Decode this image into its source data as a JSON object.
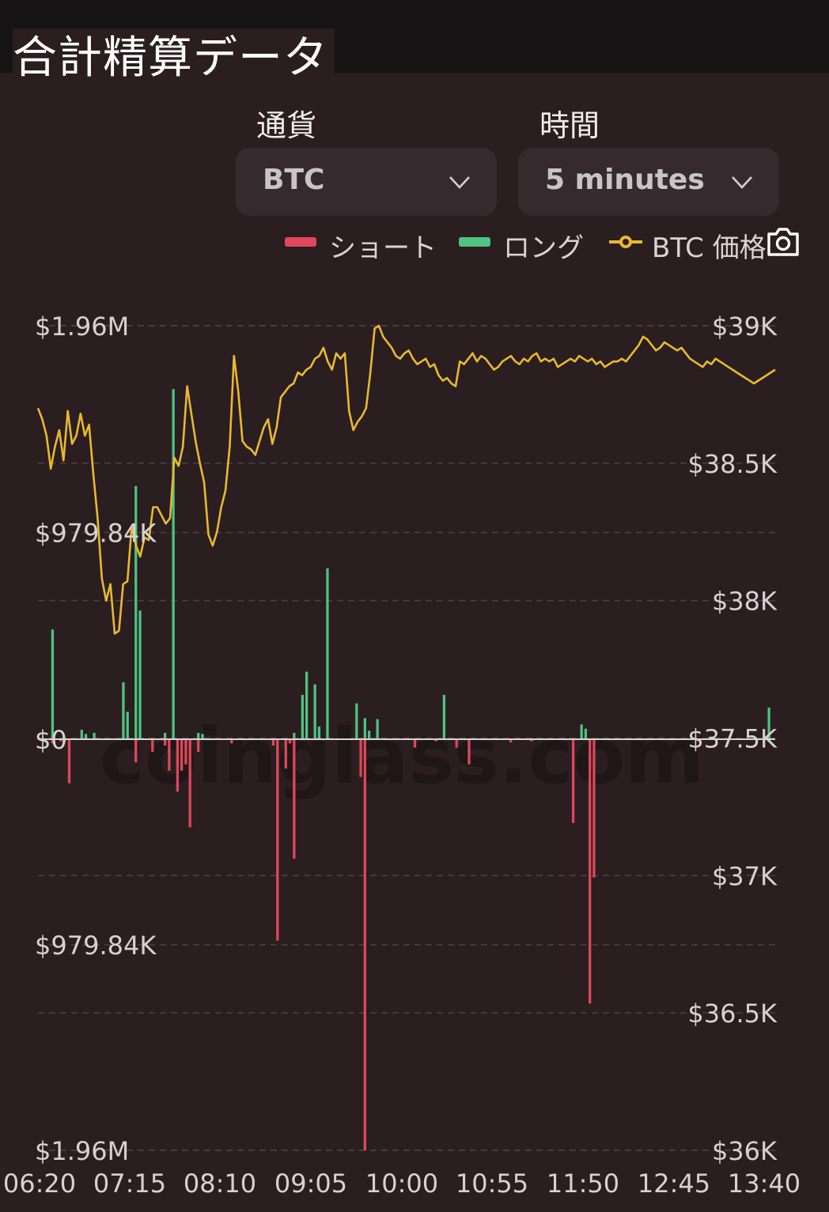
{
  "header": {
    "title": "合計精算データ"
  },
  "filters": {
    "currency_label": "通貨",
    "currency_value": "BTC",
    "interval_label": "時間",
    "interval_value": "5 minutes"
  },
  "legend": {
    "short": "ショート",
    "long": "ロング",
    "price": "BTC 価格"
  },
  "colors": {
    "short": "#e0475a",
    "long": "#4fc37f",
    "price": "#e8b830",
    "background": "#2a1e21"
  },
  "icons": [
    "chevron-down-icon",
    "camera-icon"
  ],
  "watermark": "coinglass.com",
  "chart_data": {
    "type": "bar",
    "x_ticks": [
      "06:20",
      "07:15",
      "08:10",
      "09:05",
      "10:00",
      "10:55",
      "11:50",
      "12:45",
      "13:40"
    ],
    "y_left_ticks": [
      "$1.96M",
      "$979.84K",
      "$0",
      "$979.84K",
      "$1.96M"
    ],
    "y_right_ticks": [
      "$39K",
      "$38.5K",
      "$38K",
      "$37.5K",
      "$37K",
      "$36.5K",
      "$36K"
    ],
    "ylim_left": [
      -1960000,
      1960000
    ],
    "ylim_right": [
      36000,
      39000
    ],
    "series": [
      {
        "name": "ロング",
        "values": [
          0,
          0,
          0,
          520000,
          0,
          0,
          0,
          0,
          0,
          0,
          45000,
          25000,
          0,
          30000,
          0,
          0,
          0,
          0,
          0,
          0,
          270000,
          130000,
          0,
          1200000,
          610000,
          0,
          0,
          0,
          0,
          0,
          30000,
          0,
          1660000,
          0,
          0,
          0,
          0,
          0,
          30000,
          25000,
          0,
          0,
          0,
          0,
          0,
          0,
          0,
          0,
          0,
          0,
          0,
          0,
          0,
          0,
          0,
          0,
          0,
          0,
          0,
          0,
          0,
          30000,
          0,
          210000,
          320000,
          0,
          260000,
          60000,
          0,
          810000,
          0,
          0,
          0,
          0,
          0,
          0,
          170000,
          0,
          100000,
          40000,
          0,
          95000,
          0,
          0,
          0,
          0,
          0,
          0,
          0,
          0,
          0,
          0,
          0,
          0,
          0,
          0,
          0,
          210000,
          0,
          0,
          0,
          0,
          0,
          0,
          0,
          0,
          0,
          0,
          0,
          0,
          0,
          0,
          0,
          0,
          0,
          0,
          0,
          0,
          0,
          0,
          0,
          0,
          0,
          0,
          0,
          0,
          0,
          0,
          0,
          0,
          70000,
          50000,
          0,
          0,
          0,
          0,
          0,
          0,
          0,
          0,
          0,
          0,
          0,
          0,
          0,
          0,
          0,
          0,
          0,
          0,
          0,
          0,
          0,
          0,
          0,
          0,
          0,
          0,
          0,
          0,
          0,
          0,
          0,
          0,
          0,
          0,
          0,
          0,
          0,
          0,
          0,
          0,
          0,
          0,
          0,
          150000,
          0
        ]
      },
      {
        "name": "ショート",
        "values": [
          0,
          0,
          0,
          -20000,
          0,
          -10000,
          -10000,
          -210000,
          0,
          0,
          0,
          0,
          0,
          0,
          0,
          0,
          0,
          0,
          0,
          0,
          0,
          0,
          0,
          -110000,
          0,
          0,
          0,
          -60000,
          0,
          0,
          -30000,
          -150000,
          0,
          -250000,
          -150000,
          -120000,
          -420000,
          0,
          -60000,
          0,
          0,
          0,
          0,
          0,
          0,
          0,
          -20000,
          0,
          0,
          0,
          0,
          0,
          0,
          0,
          0,
          0,
          -30000,
          -960000,
          0,
          -140000,
          -20000,
          -570000,
          0,
          0,
          0,
          0,
          0,
          0,
          0,
          0,
          0,
          0,
          0,
          0,
          0,
          0,
          0,
          -180000,
          -1960000,
          0,
          0,
          0,
          0,
          0,
          0,
          0,
          0,
          0,
          0,
          0,
          -40000,
          0,
          0,
          0,
          0,
          -10000,
          0,
          0,
          0,
          0,
          -40000,
          0,
          0,
          -120000,
          0,
          0,
          0,
          0,
          0,
          0,
          0,
          0,
          0,
          -15000,
          0,
          0,
          0,
          0,
          -10000,
          0,
          0,
          0,
          0,
          0,
          0,
          0,
          0,
          0,
          -400000,
          0,
          0,
          0,
          -1260000,
          -660000,
          0,
          0,
          0,
          0,
          0,
          0,
          0,
          0,
          0,
          0,
          0,
          0,
          0,
          0,
          0,
          0,
          0,
          0,
          0,
          0,
          0,
          0,
          0,
          0,
          0,
          0,
          0,
          0,
          0,
          0,
          0,
          0,
          0,
          0,
          0,
          0,
          0,
          0,
          0,
          0,
          0,
          0,
          0,
          0,
          0,
          0,
          0,
          0,
          0,
          0,
          0,
          0
        ]
      },
      {
        "name": "BTC 価格",
        "values": [
          38700,
          38660,
          38600,
          38480,
          38560,
          38620,
          38510,
          38690,
          38570,
          38600,
          38680,
          38600,
          38640,
          38460,
          38300,
          38080,
          38000,
          38060,
          37880,
          37890,
          38060,
          38070,
          38270,
          38200,
          38160,
          38230,
          38220,
          38340,
          38340,
          38310,
          38280,
          38300,
          38520,
          38490,
          38560,
          38780,
          38680,
          38580,
          38500,
          38430,
          38240,
          38200,
          38250,
          38340,
          38400,
          38560,
          38890,
          38760,
          38580,
          38560,
          38550,
          38530,
          38580,
          38630,
          38660,
          38570,
          38630,
          38740,
          38760,
          38780,
          38790,
          38830,
          38820,
          38840,
          38850,
          38880,
          38890,
          38920,
          38870,
          38840,
          38900,
          38880,
          38900,
          38690,
          38620,
          38650,
          38670,
          38700,
          38830,
          38990,
          39000,
          38960,
          38940,
          38920,
          38890,
          38880,
          38900,
          38910,
          38880,
          38860,
          38870,
          38880,
          38850,
          38860,
          38820,
          38800,
          38810,
          38790,
          38780,
          38870,
          38860,
          38880,
          38900,
          38870,
          38890,
          38880,
          38860,
          38840,
          38850,
          38870,
          38880,
          38890,
          38870,
          38860,
          38880,
          38870,
          38890,
          38900,
          38870,
          38880,
          38870,
          38880,
          38850,
          38860,
          38870,
          38880,
          38870,
          38890,
          38880,
          38870,
          38880,
          38860,
          38870,
          38850,
          38860,
          38870,
          38870,
          38880,
          38870,
          38890,
          38910,
          38930,
          38960,
          38950,
          38930,
          38910,
          38920,
          38940,
          38930,
          38920,
          38910,
          38920,
          38900,
          38880,
          38870,
          38860,
          38850,
          38870,
          38860,
          38880,
          38870,
          38860,
          38850,
          38840,
          38830,
          38820,
          38810,
          38800,
          38790,
          38800,
          38810,
          38820,
          38830,
          38840
        ]
      }
    ],
    "grid": true,
    "legend_position": "top-right"
  }
}
